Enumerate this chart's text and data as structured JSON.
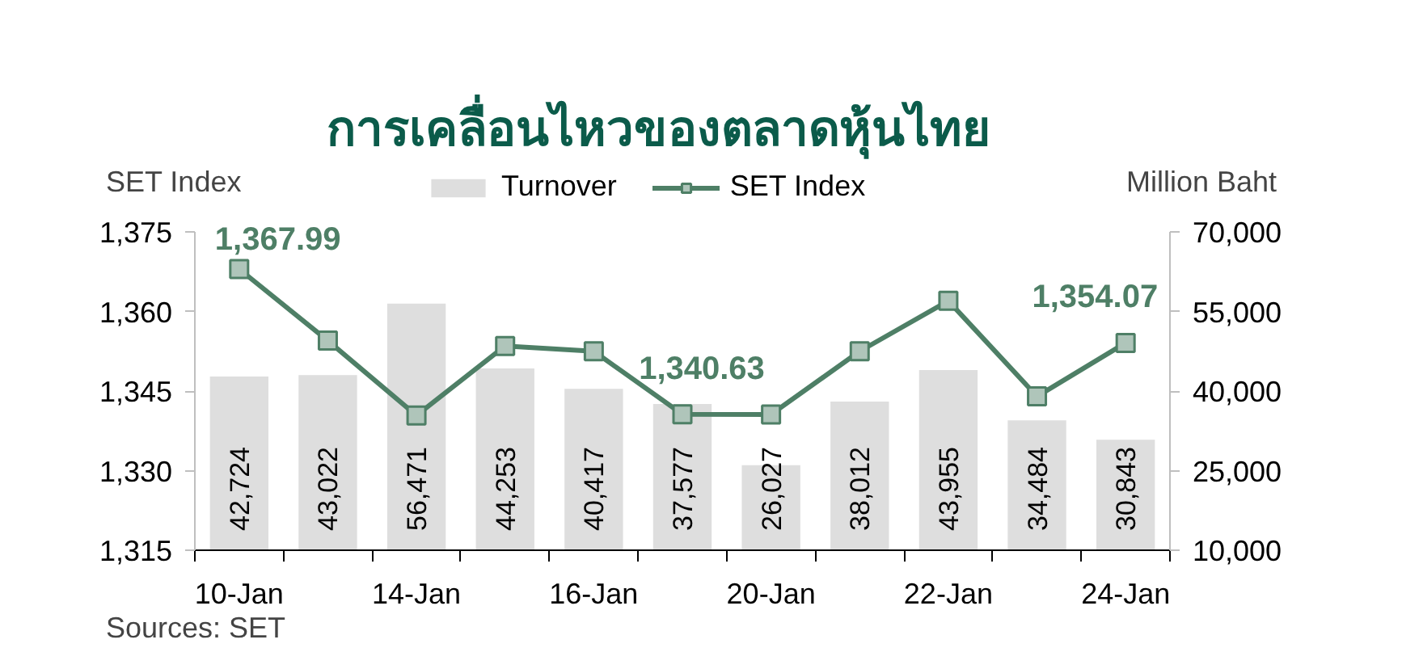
{
  "chart_data": {
    "type": "bar",
    "title": "การเคลื่อนไหวของตลาดหุ้นไทย",
    "ylabel": "SET Index",
    "y2label": "Million Baht",
    "annotations": [
      "Sources: SET"
    ],
    "categories": [
      "10-Jan",
      null,
      "14-Jan",
      null,
      "16-Jan",
      null,
      "20-Jan",
      null,
      "22-Jan",
      null,
      "24-Jan"
    ],
    "series": [
      {
        "name": "Turnover",
        "axis": "y2",
        "color": "#dedede",
        "values": [
          42724,
          43022,
          56471,
          44253,
          40417,
          37577,
          26027,
          38012,
          43955,
          34484,
          30843
        ],
        "value_labels": [
          "42,724",
          "43,022",
          "56,471",
          "44,253",
          "40,417",
          "37,577",
          "26,027",
          "38,012",
          "43,955",
          "34,484",
          "30,843"
        ]
      },
      {
        "name": "SET Index",
        "type": "line",
        "color": "#4e7f66",
        "values": [
          1367.99,
          1354.5,
          1340.4,
          1353.5,
          1352.5,
          1340.63,
          1340.6,
          1352.5,
          1362,
          1344,
          1354.07
        ],
        "value_labels": [
          "1,367.99",
          null,
          null,
          null,
          null,
          "1,340.63",
          null,
          null,
          null,
          null,
          "1,354.07"
        ]
      }
    ],
    "ylim": [
      1315,
      1375
    ],
    "yticks": [
      {
        "value": 1315,
        "label": "1,315"
      },
      {
        "value": 1330,
        "label": "1,330"
      },
      {
        "value": 1345,
        "label": "1,345"
      },
      {
        "value": 1360,
        "label": "1,360"
      },
      {
        "value": 1375,
        "label": "1,375"
      }
    ],
    "y2lim": [
      10000,
      70000
    ],
    "y2ticks": [
      {
        "value": 10000,
        "label": "10,000"
      },
      {
        "value": 25000,
        "label": "25,000"
      },
      {
        "value": 40000,
        "label": "40,000"
      },
      {
        "value": 55000,
        "label": "55,000"
      },
      {
        "value": 70000,
        "label": "70,000"
      }
    ],
    "legend": "top",
    "marker": "square"
  }
}
